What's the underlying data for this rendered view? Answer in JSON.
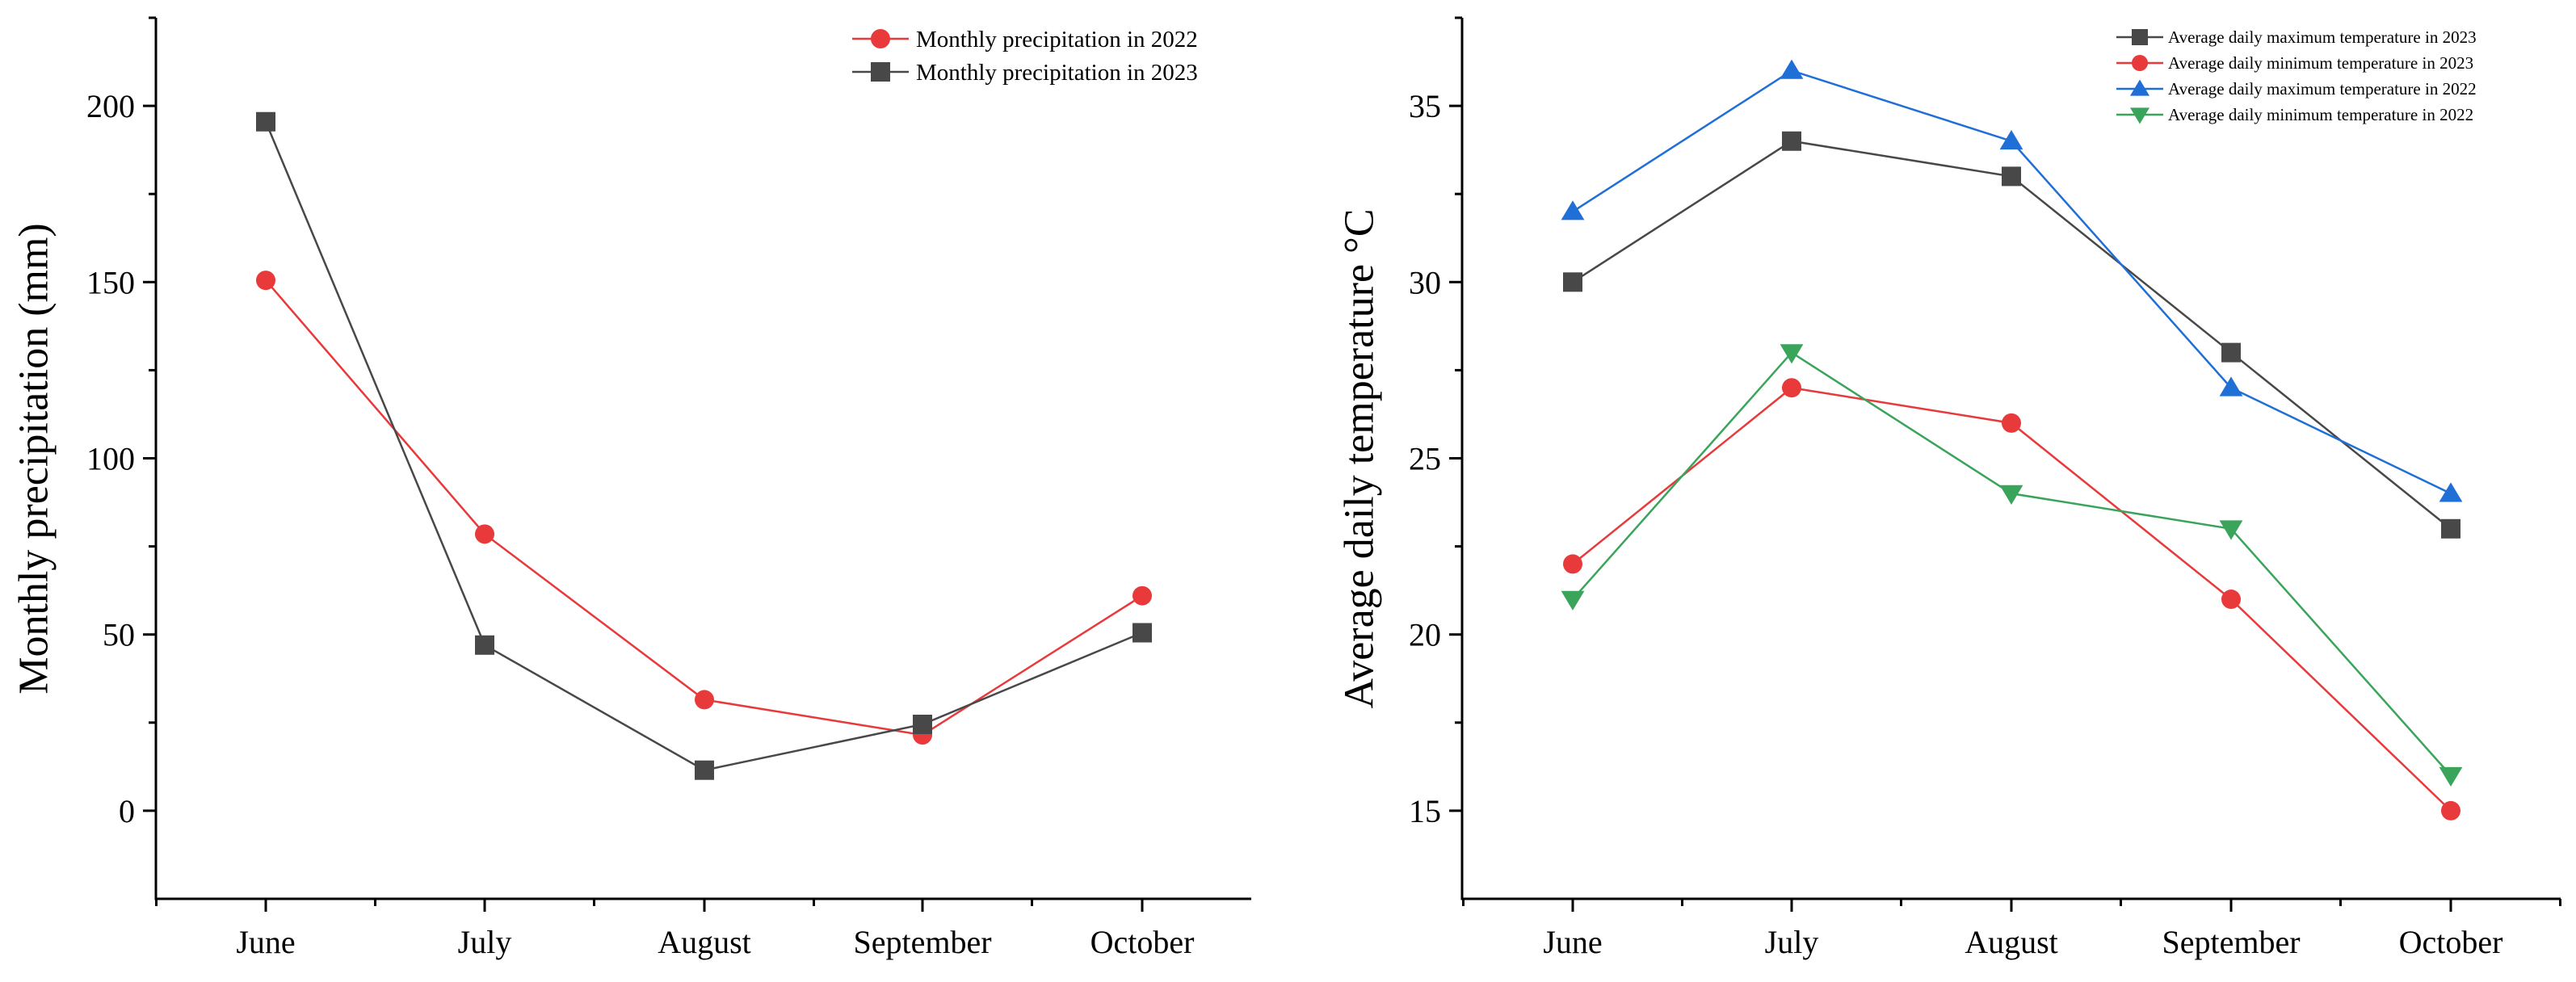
{
  "chart_data": [
    {
      "type": "line",
      "title": "",
      "xlabel": "",
      "ylabel": "Monthly precipitation (mm)",
      "categories": [
        "June",
        "July",
        "August",
        "September",
        "October"
      ],
      "ylim": [
        -25,
        225
      ],
      "yticks": [
        0,
        50,
        100,
        150,
        200
      ],
      "ytick_labels": [
        "0",
        "50",
        "100",
        "150",
        "200"
      ],
      "legend_position": "top-right",
      "series": [
        {
          "name": "Monthly precipitation in 2022",
          "color": "#e8393b",
          "marker": "circle",
          "values": [
            150.5,
            78.5,
            31.5,
            21.5,
            61.0
          ]
        },
        {
          "name": "Monthly precipitation in 2023",
          "color": "#484848",
          "marker": "square",
          "values": [
            195.5,
            47.0,
            11.5,
            24.5,
            50.5
          ]
        }
      ]
    },
    {
      "type": "line",
      "title": "",
      "xlabel": "",
      "ylabel": "Average daily temperature °C",
      "categories": [
        "June",
        "July",
        "August",
        "September",
        "October"
      ],
      "ylim": [
        12.5,
        37.5
      ],
      "yticks": [
        15,
        20,
        25,
        30,
        35
      ],
      "ytick_labels": [
        "15",
        "20",
        "25",
        "30",
        "35"
      ],
      "legend_position": "top-right",
      "series": [
        {
          "name": "Average daily maximum temperature in 2023",
          "color": "#484848",
          "marker": "square",
          "values": [
            30,
            34,
            33,
            28,
            23
          ]
        },
        {
          "name": "Average daily minimum temperature in 2023",
          "color": "#e8393b",
          "marker": "circle",
          "values": [
            22,
            27,
            26,
            21,
            15
          ]
        },
        {
          "name": "Average daily maximum temperature in 2022",
          "color": "#1f6fd6",
          "marker": "triangle-up",
          "values": [
            32,
            36,
            34,
            27,
            24
          ]
        },
        {
          "name": "Average daily minimum temperature in 2022",
          "color": "#3aa45a",
          "marker": "triangle-down",
          "values": [
            21,
            28,
            24,
            23,
            16
          ]
        }
      ]
    }
  ]
}
